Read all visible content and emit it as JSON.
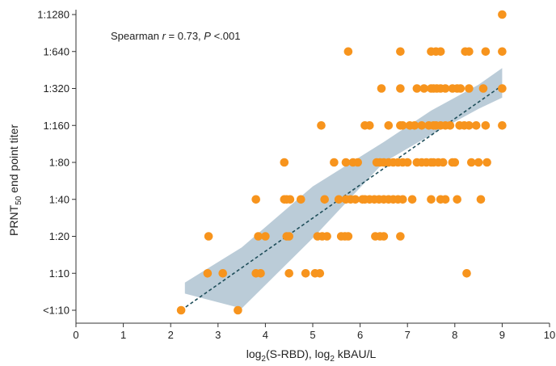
{
  "chart_data": {
    "type": "scatter",
    "annotation": {
      "prefix": "Spearman ",
      "r_symbol": "r",
      "r_text": " = 0.73, ",
      "p_symbol": "P",
      "p_text": " <.001"
    },
    "xlabel": {
      "part1": "log",
      "sub1": "2",
      "part2": "(S-RBD), log",
      "sub2": "2",
      "part3": " kBAU/L"
    },
    "ylabel": {
      "part1": "PRNT",
      "sub": "50",
      "part2": " end point titer"
    },
    "xlim": [
      0,
      10
    ],
    "x_ticks": [
      "0",
      "1",
      "2",
      "3",
      "4",
      "5",
      "6",
      "7",
      "8",
      "9",
      "10"
    ],
    "y_categories": [
      "<1:10",
      "1:10",
      "1:20",
      "1:40",
      "1:80",
      "1:160",
      "1:320",
      "1:640",
      "1:1280"
    ],
    "points": [
      [
        2.22,
        0
      ],
      [
        3.42,
        0
      ],
      [
        2.78,
        1
      ],
      [
        3.1,
        1
      ],
      [
        3.8,
        1
      ],
      [
        3.9,
        1
      ],
      [
        4.5,
        1
      ],
      [
        4.85,
        1
      ],
      [
        5.05,
        1
      ],
      [
        5.15,
        1
      ],
      [
        8.25,
        1
      ],
      [
        2.8,
        2
      ],
      [
        3.85,
        2
      ],
      [
        4.0,
        2
      ],
      [
        4.45,
        2
      ],
      [
        4.5,
        2
      ],
      [
        5.1,
        2
      ],
      [
        5.2,
        2
      ],
      [
        5.3,
        2
      ],
      [
        5.6,
        2
      ],
      [
        5.68,
        2
      ],
      [
        5.75,
        2
      ],
      [
        6.32,
        2
      ],
      [
        6.42,
        2
      ],
      [
        6.5,
        2
      ],
      [
        6.85,
        2
      ],
      [
        3.8,
        3
      ],
      [
        4.4,
        3
      ],
      [
        4.45,
        3
      ],
      [
        4.52,
        3
      ],
      [
        4.75,
        3
      ],
      [
        5.25,
        3
      ],
      [
        5.55,
        3
      ],
      [
        5.7,
        3
      ],
      [
        5.8,
        3
      ],
      [
        5.9,
        3
      ],
      [
        6.05,
        3
      ],
      [
        6.1,
        3
      ],
      [
        6.2,
        3
      ],
      [
        6.3,
        3
      ],
      [
        6.4,
        3
      ],
      [
        6.5,
        3
      ],
      [
        6.6,
        3
      ],
      [
        6.7,
        3
      ],
      [
        6.8,
        3
      ],
      [
        6.9,
        3
      ],
      [
        7.1,
        3
      ],
      [
        7.5,
        3
      ],
      [
        7.7,
        3
      ],
      [
        7.8,
        3
      ],
      [
        8.05,
        3
      ],
      [
        8.55,
        3
      ],
      [
        4.4,
        4
      ],
      [
        5.45,
        4
      ],
      [
        5.7,
        4
      ],
      [
        5.85,
        4
      ],
      [
        5.95,
        4
      ],
      [
        6.35,
        4
      ],
      [
        6.42,
        4
      ],
      [
        6.5,
        4
      ],
      [
        6.6,
        4
      ],
      [
        6.7,
        4
      ],
      [
        6.8,
        4
      ],
      [
        6.9,
        4
      ],
      [
        7.0,
        4
      ],
      [
        7.2,
        4
      ],
      [
        7.3,
        4
      ],
      [
        7.4,
        4
      ],
      [
        7.5,
        4
      ],
      [
        7.55,
        4
      ],
      [
        7.65,
        4
      ],
      [
        7.75,
        4
      ],
      [
        7.95,
        4
      ],
      [
        8.0,
        4
      ],
      [
        8.35,
        4
      ],
      [
        8.5,
        4
      ],
      [
        8.68,
        4
      ],
      [
        5.18,
        5
      ],
      [
        6.1,
        5
      ],
      [
        6.2,
        5
      ],
      [
        6.6,
        5
      ],
      [
        6.85,
        5
      ],
      [
        6.9,
        5
      ],
      [
        7.05,
        5
      ],
      [
        7.15,
        5
      ],
      [
        7.3,
        5
      ],
      [
        7.45,
        5
      ],
      [
        7.55,
        5
      ],
      [
        7.6,
        5
      ],
      [
        7.7,
        5
      ],
      [
        7.8,
        5
      ],
      [
        7.9,
        5
      ],
      [
        8.1,
        5
      ],
      [
        8.2,
        5
      ],
      [
        8.3,
        5
      ],
      [
        8.45,
        5
      ],
      [
        8.65,
        5
      ],
      [
        9.0,
        5
      ],
      [
        6.45,
        6
      ],
      [
        6.85,
        6
      ],
      [
        7.2,
        6
      ],
      [
        7.35,
        6
      ],
      [
        7.5,
        6
      ],
      [
        7.55,
        6
      ],
      [
        7.62,
        6
      ],
      [
        7.7,
        6
      ],
      [
        7.8,
        6
      ],
      [
        7.95,
        6
      ],
      [
        8.05,
        6
      ],
      [
        8.12,
        6
      ],
      [
        8.3,
        6
      ],
      [
        8.6,
        6
      ],
      [
        9.0,
        6
      ],
      [
        5.75,
        7
      ],
      [
        6.85,
        7
      ],
      [
        7.5,
        7
      ],
      [
        7.6,
        7
      ],
      [
        7.7,
        7
      ],
      [
        8.22,
        7
      ],
      [
        8.3,
        7
      ],
      [
        8.65,
        7
      ],
      [
        9.0,
        7
      ],
      [
        9.0,
        8
      ]
    ],
    "trend_line": {
      "x": [
        2.22,
        9.0
      ],
      "y": [
        0,
        6.08
      ]
    },
    "confidence_band": {
      "x": [
        2.3,
        3.5,
        5.0,
        6.5,
        7.5,
        8.5,
        9.0
      ],
      "lower": [
        0.45,
        0.05,
        1.95,
        4.0,
        4.75,
        5.45,
        5.75
      ],
      "upper": [
        0.75,
        1.7,
        3.35,
        4.55,
        5.4,
        6.1,
        6.55
      ]
    },
    "grid": false,
    "legend": "none",
    "colors": {
      "point": "#F7941D",
      "line": "#1F4E5A",
      "band": "#AFC3D1",
      "axis": "#333333"
    }
  }
}
